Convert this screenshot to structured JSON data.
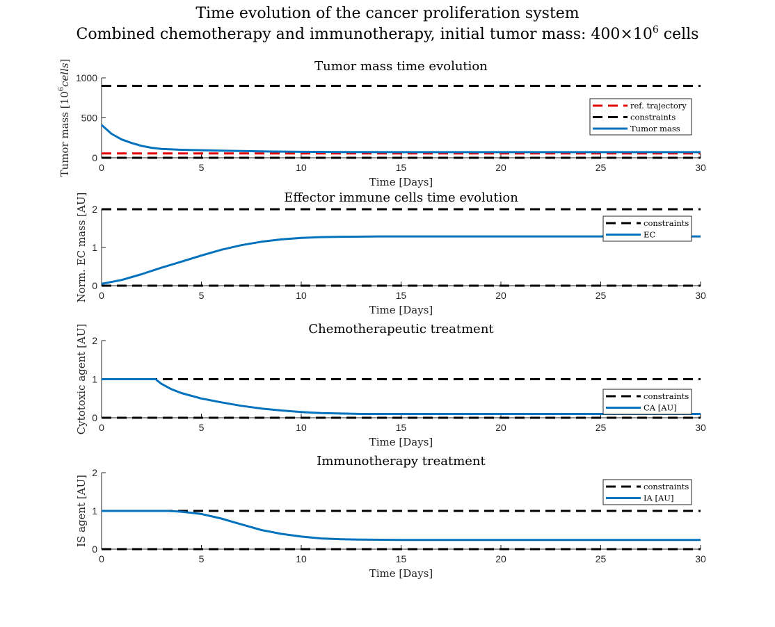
{
  "figure": {
    "title_line1": "Time evolution of the cancer proliferation system",
    "title_line2_prefix": "Combined chemotherapy and immunotherapy, initial tumor mass: 400×10",
    "title_line2_sup": "6",
    "title_line2_suffix": " cells"
  },
  "colors": {
    "blue": "#0072BD",
    "red": "#E00000",
    "black": "#000000"
  },
  "chart_data": [
    {
      "type": "line",
      "title": "Tumor mass time evolution",
      "xlabel": "Time [Days]",
      "ylabel_prefix": "Tumor mass [10",
      "ylabel_sup": "6",
      "ylabel_italic": "cells",
      "ylabel_suffix": "]",
      "xlim": [
        0,
        30
      ],
      "ylim": [
        0,
        1000
      ],
      "xticks": [
        0,
        5,
        10,
        15,
        20,
        25,
        30
      ],
      "yticks": [
        0,
        500,
        1000
      ],
      "legend_position": "upper-right-inner",
      "series": [
        {
          "name": "ref. trajectory",
          "style": "dashed",
          "color": "#E00000",
          "x": [
            0,
            30
          ],
          "y": [
            55,
            55
          ]
        },
        {
          "name": "constraints",
          "style": "dashed",
          "color": "#000000",
          "x": [
            0,
            30
          ],
          "y": [
            900,
            900
          ],
          "x2": [
            0,
            30
          ],
          "y2": [
            0,
            0
          ]
        },
        {
          "name": "Tumor mass",
          "style": "solid",
          "color": "#0072BD",
          "x": [
            0,
            0.5,
            1,
            1.5,
            2,
            2.5,
            3,
            4,
            5,
            6,
            7,
            8,
            10,
            12,
            15,
            20,
            25,
            30
          ],
          "y": [
            410,
            300,
            230,
            185,
            150,
            125,
            110,
            100,
            95,
            90,
            85,
            80,
            75,
            72,
            70,
            70,
            70,
            70
          ]
        }
      ]
    },
    {
      "type": "line",
      "title": "Effector immune cells time evolution",
      "xlabel": "Time [Days]",
      "ylabel": "Norm. EC mass [AU]",
      "xlim": [
        0,
        30
      ],
      "ylim": [
        0,
        2
      ],
      "xticks": [
        0,
        5,
        10,
        15,
        20,
        25,
        30
      ],
      "yticks": [
        0,
        1,
        2
      ],
      "legend_position": "upper-right-inner",
      "series": [
        {
          "name": "constraints",
          "style": "dashed",
          "color": "#000000",
          "x": [
            0,
            30
          ],
          "y": [
            2,
            2
          ],
          "x2": [
            0,
            30
          ],
          "y2": [
            0,
            0
          ]
        },
        {
          "name": "EC",
          "style": "solid",
          "color": "#0072BD",
          "x": [
            0,
            1,
            2,
            3,
            4,
            5,
            6,
            7,
            8,
            9,
            10,
            11,
            12,
            14,
            16,
            20,
            25,
            30
          ],
          "y": [
            0.05,
            0.15,
            0.3,
            0.47,
            0.63,
            0.79,
            0.94,
            1.06,
            1.15,
            1.21,
            1.25,
            1.27,
            1.28,
            1.29,
            1.29,
            1.29,
            1.29,
            1.29
          ]
        }
      ]
    },
    {
      "type": "line",
      "title": "Chemotherapeutic treatment",
      "xlabel": "Time [Days]",
      "ylabel": "Cytotoxic agent [AU]",
      "xlim": [
        0,
        30
      ],
      "ylim": [
        0,
        2
      ],
      "xticks": [
        0,
        5,
        10,
        15,
        20,
        25,
        30
      ],
      "yticks": [
        0,
        1,
        2
      ],
      "legend_position": "lower-right-inner",
      "series": [
        {
          "name": "constraints",
          "style": "dashed",
          "color": "#000000",
          "x": [
            0,
            30
          ],
          "y": [
            1,
            1
          ],
          "x2": [
            0,
            30
          ],
          "y2": [
            0,
            0
          ]
        },
        {
          "name": "CA [AU]",
          "style": "solid",
          "color": "#0072BD",
          "x": [
            0,
            2.7,
            3,
            3.5,
            4,
            5,
            6,
            7,
            8,
            9,
            10,
            11,
            12,
            13,
            15,
            20,
            25,
            30
          ],
          "y": [
            1,
            1,
            0.88,
            0.74,
            0.64,
            0.5,
            0.4,
            0.31,
            0.24,
            0.19,
            0.15,
            0.12,
            0.11,
            0.1,
            0.1,
            0.1,
            0.1,
            0.1
          ]
        }
      ]
    },
    {
      "type": "line",
      "title": "Immunotherapy treatment",
      "xlabel": "Time [Days]",
      "ylabel": "IS agent [AU]",
      "xlim": [
        0,
        30
      ],
      "ylim": [
        0,
        2
      ],
      "xticks": [
        0,
        5,
        10,
        15,
        20,
        25,
        30
      ],
      "yticks": [
        0,
        1,
        2
      ],
      "legend_position": "upper-right-inner",
      "series": [
        {
          "name": "constraints",
          "style": "dashed",
          "color": "#000000",
          "x": [
            0,
            30
          ],
          "y": [
            1,
            1
          ],
          "x2": [
            0,
            30
          ],
          "y2": [
            0,
            0
          ]
        },
        {
          "name": "IA [AU]",
          "style": "solid",
          "color": "#0072BD",
          "x": [
            0,
            3.3,
            4,
            5,
            6,
            7,
            8,
            9,
            10,
            11,
            12,
            13,
            14,
            15,
            20,
            25,
            30
          ],
          "y": [
            1,
            1,
            0.98,
            0.92,
            0.8,
            0.65,
            0.5,
            0.4,
            0.33,
            0.28,
            0.26,
            0.25,
            0.245,
            0.24,
            0.24,
            0.24,
            0.24
          ]
        }
      ]
    }
  ]
}
